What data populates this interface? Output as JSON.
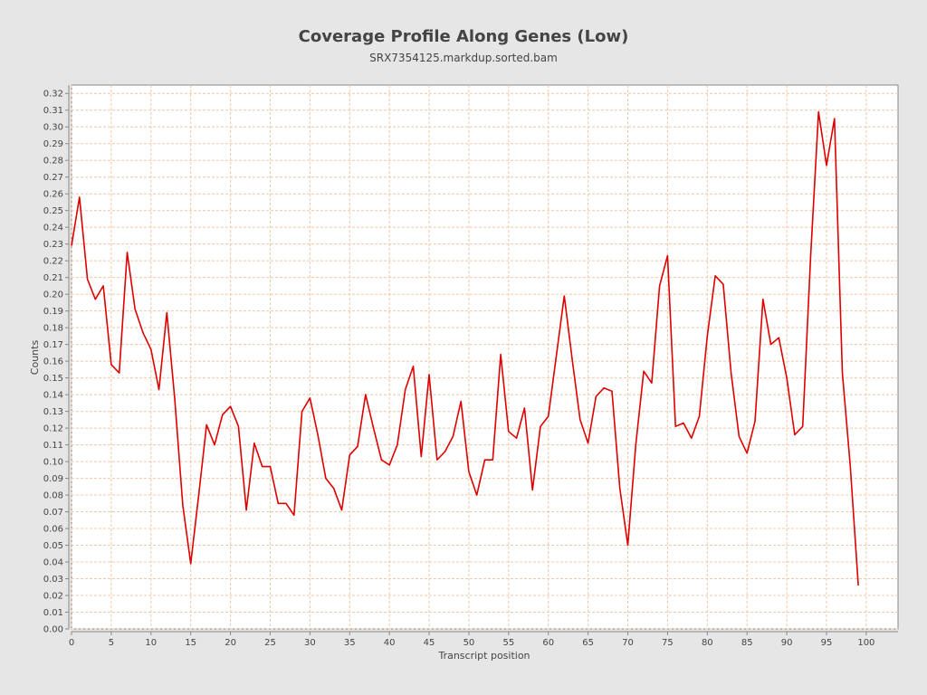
{
  "chart_data": {
    "type": "line",
    "title": "Coverage Profile Along Genes (Low)",
    "subtitle": "SRX7354125.markdup.sorted.bam",
    "xlabel": "Transcript position",
    "ylabel": "Counts",
    "xlim": [
      0,
      104
    ],
    "ylim": [
      0,
      0.325
    ],
    "x_ticks": [
      0,
      5,
      10,
      15,
      20,
      25,
      30,
      35,
      40,
      45,
      50,
      55,
      60,
      65,
      70,
      75,
      80,
      85,
      90,
      95,
      100
    ],
    "y_ticks": [
      "0.00",
      "0.01",
      "0.02",
      "0.03",
      "0.04",
      "0.05",
      "0.06",
      "0.07",
      "0.08",
      "0.09",
      "0.10",
      "0.11",
      "0.12",
      "0.13",
      "0.14",
      "0.15",
      "0.16",
      "0.17",
      "0.18",
      "0.19",
      "0.20",
      "0.21",
      "0.22",
      "0.23",
      "0.24",
      "0.25",
      "0.26",
      "0.27",
      "0.28",
      "0.29",
      "0.30",
      "0.31",
      "0.32"
    ],
    "grid": true,
    "colors": {
      "series": "#dd0000",
      "grid": "#f0c8a8",
      "plot_bg": "#ffffff",
      "page_bg": "#e6e6e6"
    },
    "series": [
      {
        "name": "",
        "x": [
          0,
          1,
          2,
          3,
          4,
          5,
          6,
          7,
          8,
          9,
          10,
          11,
          12,
          13,
          14,
          15,
          16,
          17,
          18,
          19,
          20,
          21,
          22,
          23,
          24,
          25,
          26,
          27,
          28,
          29,
          30,
          31,
          32,
          33,
          34,
          35,
          36,
          37,
          38,
          39,
          40,
          41,
          42,
          43,
          44,
          45,
          46,
          47,
          48,
          49,
          50,
          51,
          52,
          53,
          54,
          55,
          56,
          57,
          58,
          59,
          60,
          61,
          62,
          63,
          64,
          65,
          66,
          67,
          68,
          69,
          70,
          71,
          72,
          73,
          74,
          75,
          76,
          77,
          78,
          79,
          80,
          81,
          82,
          83,
          84,
          85,
          86,
          87,
          88,
          89,
          90,
          91,
          92,
          93,
          94,
          95,
          96,
          97,
          98,
          99
        ],
        "values": [
          0.229,
          0.258,
          0.209,
          0.197,
          0.205,
          0.158,
          0.153,
          0.225,
          0.191,
          0.177,
          0.167,
          0.143,
          0.189,
          0.137,
          0.074,
          0.039,
          0.08,
          0.122,
          0.11,
          0.128,
          0.133,
          0.121,
          0.071,
          0.111,
          0.097,
          0.097,
          0.075,
          0.075,
          0.068,
          0.13,
          0.138,
          0.116,
          0.09,
          0.084,
          0.071,
          0.104,
          0.109,
          0.14,
          0.12,
          0.101,
          0.098,
          0.11,
          0.143,
          0.157,
          0.103,
          0.152,
          0.101,
          0.106,
          0.115,
          0.136,
          0.094,
          0.08,
          0.101,
          0.101,
          0.164,
          0.118,
          0.114,
          0.132,
          0.083,
          0.121,
          0.127,
          0.163,
          0.199,
          0.161,
          0.125,
          0.111,
          0.139,
          0.144,
          0.142,
          0.084,
          0.05,
          0.11,
          0.154,
          0.147,
          0.205,
          0.223,
          0.121,
          0.123,
          0.114,
          0.127,
          0.175,
          0.211,
          0.206,
          0.153,
          0.115,
          0.105,
          0.124,
          0.197,
          0.17,
          0.174,
          0.15,
          0.116,
          0.121,
          0.222,
          0.309,
          0.277,
          0.305,
          0.153,
          0.097,
          0.026
        ]
      }
    ]
  }
}
